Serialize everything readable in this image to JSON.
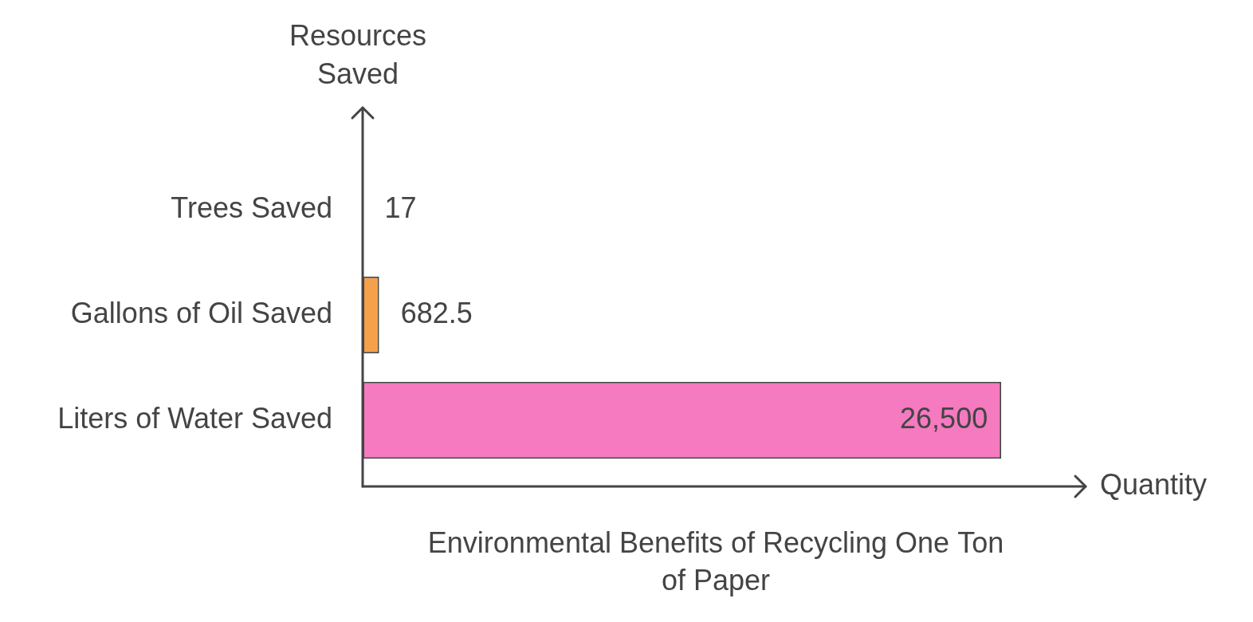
{
  "chart_data": {
    "type": "bar",
    "orientation": "horizontal",
    "title": "Environmental Benefits of Recycling One Ton of Paper",
    "x_label": "Quantity",
    "y_label": "Resources Saved",
    "categories": [
      "Trees Saved",
      "Gallons of Oil Saved",
      "Liters of Water Saved"
    ],
    "values": [
      17,
      682.5,
      26500
    ],
    "value_labels": [
      "17",
      "682.5",
      "26,500"
    ],
    "colors": [
      "#9ecae1",
      "#f5a04a",
      "#f57ac0"
    ],
    "xlim": [
      0,
      30000
    ],
    "grid": false,
    "data_labels": true,
    "tick_labels": "y"
  }
}
